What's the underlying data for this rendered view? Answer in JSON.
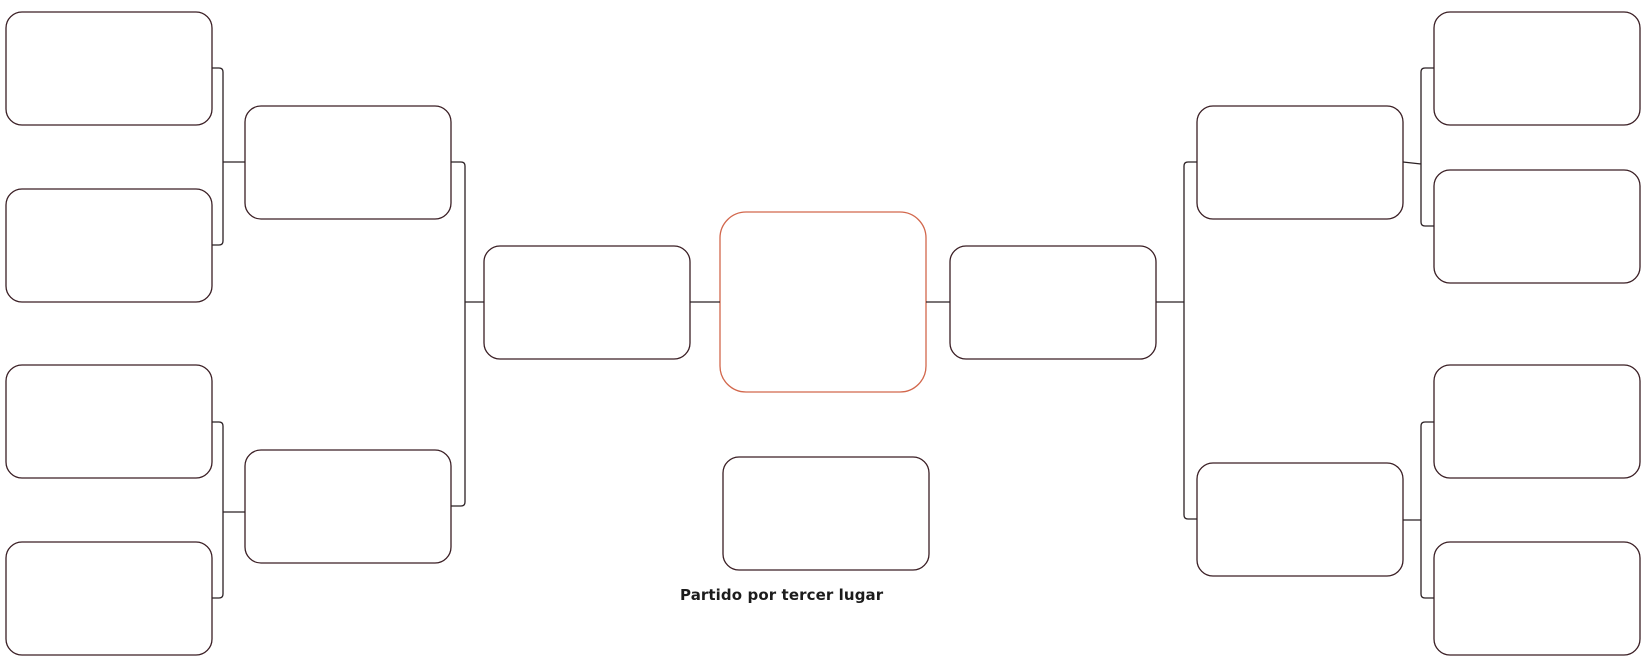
{
  "bracket": {
    "third_place_label": "Partido por tercer lugar",
    "colors": {
      "slot_border": "#3a1e24",
      "final_border": "#d2674c",
      "connector": "#2b2024"
    }
  }
}
